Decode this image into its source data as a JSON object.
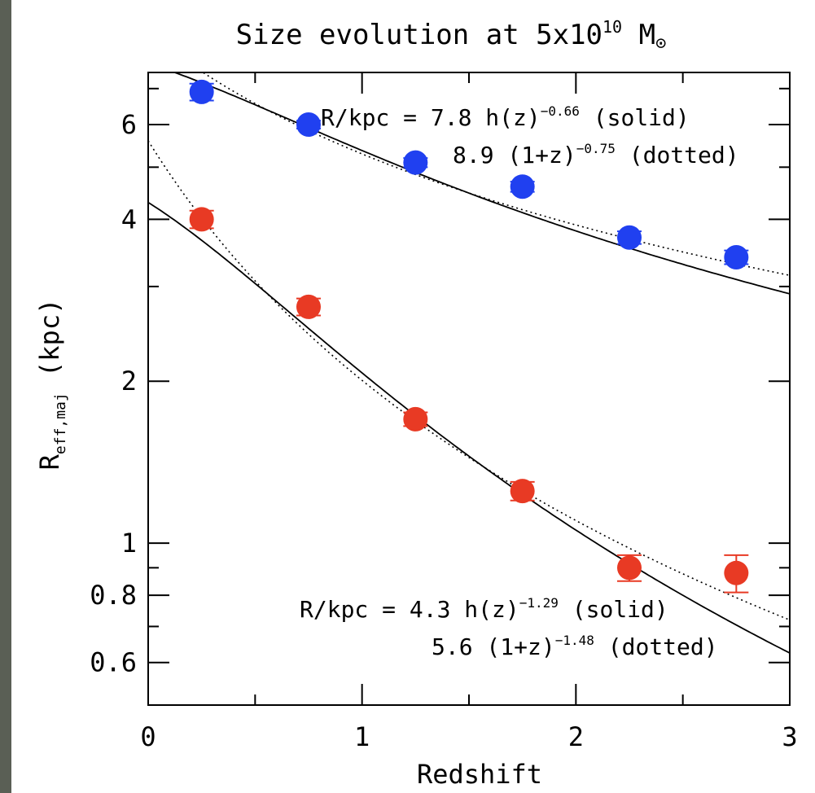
{
  "chart_data": {
    "type": "scatter",
    "title": "Size evolution at 5x10",
    "title_exp": "10",
    "title_unit": "M",
    "title_unit_symbol": "⊙",
    "xlabel": "Redshift",
    "ylabel_main": "R",
    "ylabel_sub": "eff,maj",
    "ylabel_unit": " (kpc)",
    "y_scale": "log",
    "xlim": [
      0,
      3
    ],
    "ylim": [
      0.5,
      7.5
    ],
    "x_ticks": [
      0,
      1,
      2,
      3
    ],
    "y_ticks": [
      0.6,
      0.8,
      1,
      2,
      4,
      6
    ],
    "grid": false,
    "series": [
      {
        "color": "#2040f0",
        "x": [
          0.25,
          0.75,
          1.25,
          1.75,
          2.25,
          2.75
        ],
        "y": [
          6.9,
          6.0,
          5.1,
          4.6,
          3.7,
          3.4
        ],
        "yerr": [
          0.25,
          0.1,
          0.1,
          0.1,
          0.1,
          0.1
        ],
        "fit_solid": {
          "a": 7.8,
          "b": -0.66
        },
        "fit_dotted": {
          "a": 8.9,
          "b": -0.75
        }
      },
      {
        "color": "#e83a24",
        "x": [
          0.25,
          0.75,
          1.25,
          1.75,
          2.25,
          2.75
        ],
        "y": [
          4.0,
          2.75,
          1.7,
          1.25,
          0.9,
          0.88
        ],
        "yerr": [
          0.15,
          0.1,
          0.05,
          0.05,
          0.05,
          0.07
        ],
        "fit_solid": {
          "a": 4.3,
          "b": -1.29
        },
        "fit_dotted": {
          "a": 5.6,
          "b": -1.48
        }
      }
    ],
    "annotations": [
      {
        "pre": "R/kpc = 7.8 h(z)",
        "exp": "−0.66",
        "post": " (solid)"
      },
      {
        "pre": "8.9 (1+z)",
        "exp": "−0.75",
        "post": " (dotted)"
      },
      {
        "pre": "R/kpc = 4.3 h(z)",
        "exp": "−1.29",
        "post": " (solid)"
      },
      {
        "pre": "5.6 (1+z)",
        "exp": "−1.48",
        "post": " (dotted)"
      }
    ]
  }
}
